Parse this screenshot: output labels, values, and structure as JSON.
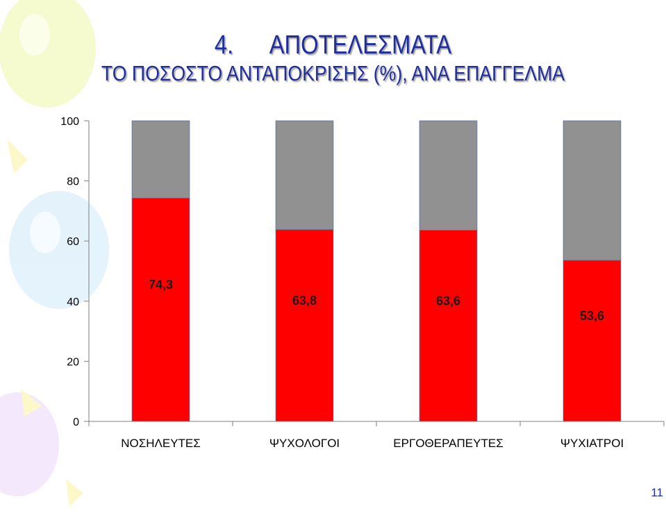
{
  "slide": {
    "number_label": "4.",
    "heading": "ΑΠΟΤΕΛΕΣΜΑΤΑ",
    "subheading": "ΤΟ ΠΟΣΟΣΤΟ ΑΝΤΑΠΟΚΡΙΣΗΣ (%), ΑΝΑ ΕΠΑΓΓΕΛΜΑ",
    "page_number": "11"
  },
  "colors": {
    "title": "#1f2e99",
    "response_bar": "#ff0000",
    "remainder_bar": "#919191",
    "axis": "#7f7f7f"
  },
  "chart_data": {
    "type": "bar",
    "stacked": true,
    "categories": [
      "ΝΟΣΗΛΕΥΤΕΣ",
      "ΨΥΧΟΛΟΓΟΙ",
      "ΕΡΓΟΘΕΡΑΠΕΥΤΕΣ",
      "ΨΥΧΙΑΤΡΟΙ"
    ],
    "series": [
      {
        "values": [
          74.3,
          63.8,
          63.6,
          53.6
        ],
        "labels": [
          "74,3",
          "63,8",
          "63,6",
          "53,6"
        ]
      },
      {
        "values": [
          25.7,
          36.2,
          36.4,
          46.4
        ]
      }
    ],
    "yticks": [
      "0",
      "20",
      "40",
      "60",
      "80",
      "100"
    ],
    "ylim": [
      0,
      100
    ],
    "grid": false,
    "legend": "none"
  }
}
